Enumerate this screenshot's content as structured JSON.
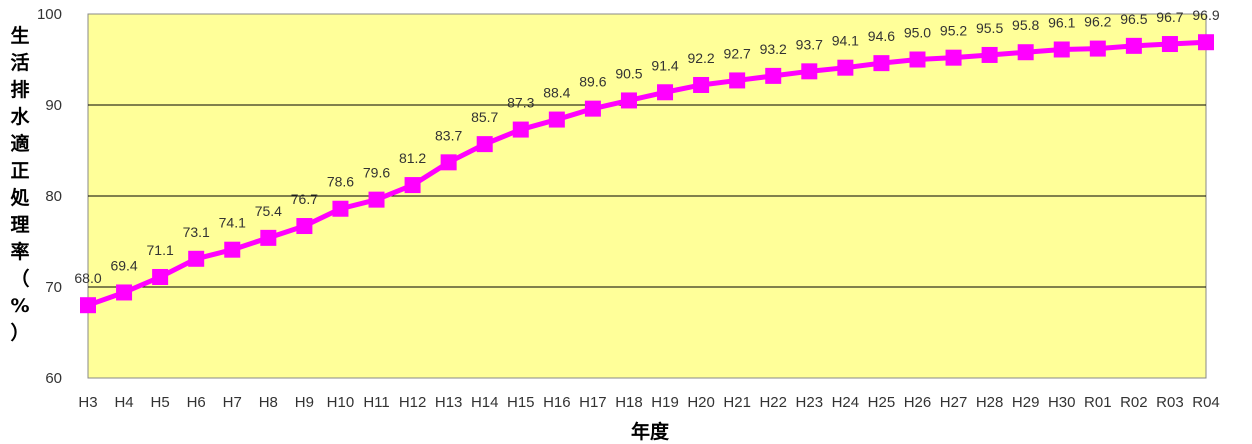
{
  "chart_data": {
    "type": "line",
    "title": "",
    "xlabel": "年度",
    "ylabel": "生活排水適正処理率（%）",
    "ylim": [
      60,
      100
    ],
    "yticks": [
      60,
      70,
      80,
      90,
      100
    ],
    "grid": true,
    "legend": "none",
    "colors": {
      "plot_bg": "#ffff99",
      "line": "#ff00ff",
      "marker": "#ff00ff",
      "grid": "#000000"
    },
    "categories": [
      "H3",
      "H4",
      "H5",
      "H6",
      "H7",
      "H8",
      "H9",
      "H10",
      "H11",
      "H12",
      "H13",
      "H14",
      "H15",
      "H16",
      "H17",
      "H18",
      "H19",
      "H20",
      "H21",
      "H22",
      "H23",
      "H24",
      "H25",
      "H26",
      "H27",
      "H28",
      "H29",
      "H30",
      "R01",
      "R02",
      "R03",
      "R04"
    ],
    "series": [
      {
        "values": [
          68.0,
          69.4,
          71.1,
          73.1,
          74.1,
          75.4,
          76.7,
          78.6,
          79.6,
          81.2,
          83.7,
          85.7,
          87.3,
          88.4,
          89.6,
          90.5,
          91.4,
          92.2,
          92.7,
          93.2,
          93.7,
          94.1,
          94.6,
          95.0,
          95.2,
          95.5,
          95.8,
          96.1,
          96.2,
          96.5,
          96.7,
          96.9
        ],
        "labels": [
          "68.0",
          "69.4",
          "71.1",
          "73.1",
          "74.1",
          "75.4",
          "76.7",
          "78.6",
          "79.6",
          "81.2",
          "83.7",
          "85.7",
          "87.3",
          "88.4",
          "89.6",
          "90.5",
          "91.4",
          "92.2",
          "92.7",
          "93.2",
          "93.7",
          "94.1",
          "94.6",
          "95.0",
          "95.2",
          "95.5",
          "95.8",
          "96.1",
          "96.2",
          "96.5",
          "96.7",
          "96.9"
        ]
      }
    ]
  }
}
